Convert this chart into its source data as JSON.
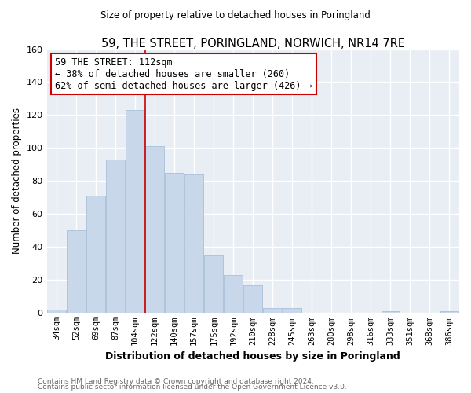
{
  "title": "59, THE STREET, PORINGLAND, NORWICH, NR14 7RE",
  "subtitle": "Size of property relative to detached houses in Poringland",
  "xlabel": "Distribution of detached houses by size in Poringland",
  "ylabel": "Number of detached properties",
  "bar_color": "#c8d8ea",
  "bar_edge_color": "#a8c0d8",
  "bin_labels": [
    "34sqm",
    "52sqm",
    "69sqm",
    "87sqm",
    "104sqm",
    "122sqm",
    "140sqm",
    "157sqm",
    "175sqm",
    "192sqm",
    "210sqm",
    "228sqm",
    "245sqm",
    "263sqm",
    "280sqm",
    "298sqm",
    "316sqm",
    "333sqm",
    "351sqm",
    "368sqm",
    "386sqm"
  ],
  "bar_heights": [
    2,
    50,
    71,
    93,
    123,
    101,
    85,
    84,
    35,
    23,
    17,
    3,
    3,
    0,
    0,
    0,
    0,
    1,
    0,
    0,
    1
  ],
  "ylim": [
    0,
    160
  ],
  "yticks": [
    0,
    20,
    40,
    60,
    80,
    100,
    120,
    140,
    160
  ],
  "vline_color": "#cc0000",
  "vline_pos": 4.5,
  "annotation_title": "59 THE STREET: 112sqm",
  "annotation_line1": "← 38% of detached houses are smaller (260)",
  "annotation_line2": "62% of semi-detached houses are larger (426) →",
  "annotation_box_color": "#ffffff",
  "annotation_box_edge": "#cc0000",
  "footer_line1": "Contains HM Land Registry data © Crown copyright and database right 2024.",
  "footer_line2": "Contains public sector information licensed under the Open Government Licence v3.0.",
  "background_color": "#ffffff",
  "plot_bg_color": "#e8eef4",
  "grid_color": "#ffffff",
  "footer_color": "#666666"
}
